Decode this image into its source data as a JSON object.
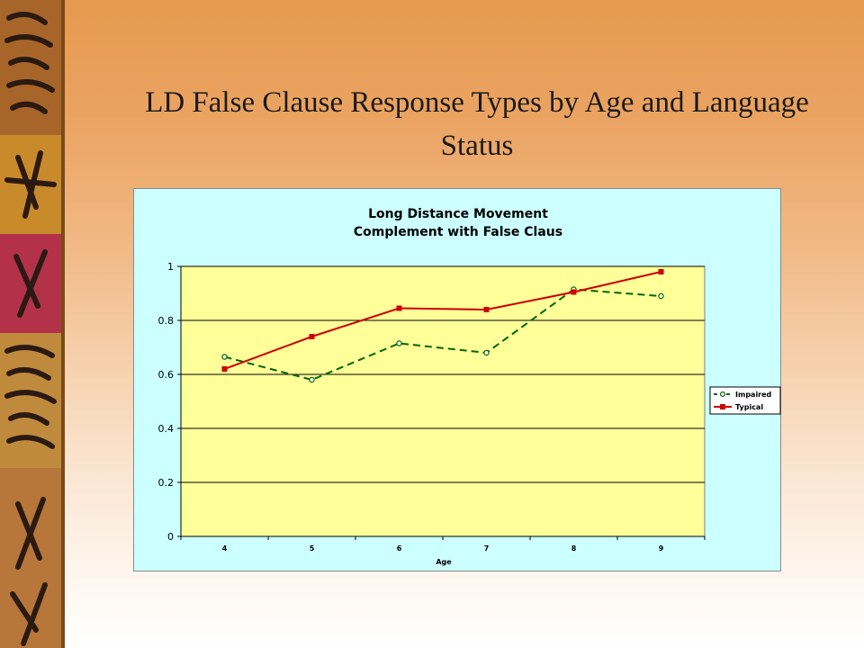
{
  "slide": {
    "title": "LD False Clause Response Types by Age and Language Status"
  },
  "colors": {
    "plot_area": "#ffff99",
    "chart_background": "#ccffff",
    "impaired": "#006600",
    "typical": "#cc0000"
  },
  "chart_data": {
    "type": "line",
    "title_lines": [
      "Long Distance Movement",
      "Complement with False Claus"
    ],
    "xlabel": "Age",
    "ylabel": "",
    "categories": [
      "4",
      "5",
      "6",
      "7",
      "8",
      "9"
    ],
    "ylim": [
      0,
      1
    ],
    "yticks": [
      "0",
      "0.2",
      "0.4",
      "0.6",
      "0.8",
      "1"
    ],
    "grid": true,
    "legend_position": "right",
    "series": [
      {
        "name": "Impaired",
        "values": [
          0.665,
          0.58,
          0.715,
          0.68,
          0.915,
          0.89
        ],
        "style": "dashed",
        "marker": "circle",
        "color": "#006600"
      },
      {
        "name": "Typical",
        "values": [
          0.62,
          0.74,
          0.845,
          0.84,
          0.905,
          0.98
        ],
        "style": "solid",
        "marker": "square",
        "color": "#cc0000"
      }
    ]
  }
}
